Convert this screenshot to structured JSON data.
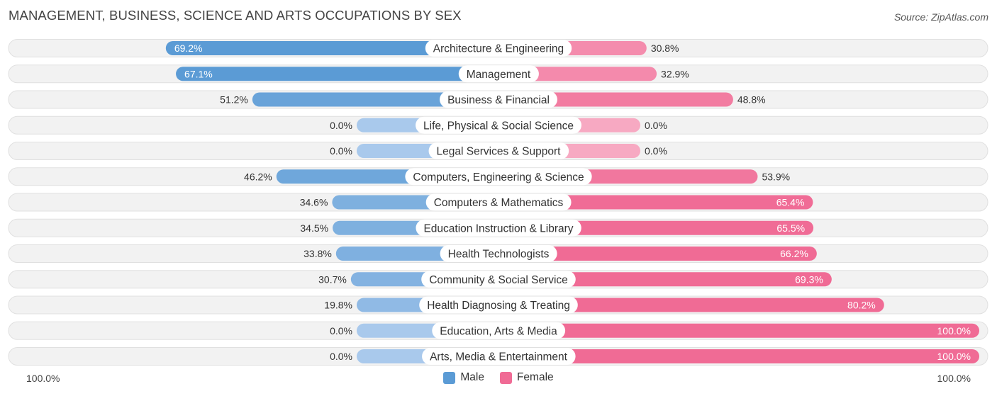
{
  "header": {
    "title": "MANAGEMENT, BUSINESS, SCIENCE AND ARTS OCCUPATIONS BY SEX",
    "source": "Source: ZipAtlas.com"
  },
  "axis": {
    "left_label": "100.0%",
    "right_label": "100.0%"
  },
  "legend": {
    "male_label": "Male",
    "female_label": "Female"
  },
  "colors": {
    "male_strong": "#5b9bd5",
    "male_light": "#a9c9ec",
    "female_strong": "#f06b95",
    "female_light": "#f7a9c2",
    "row_bg": "#f2f2f2",
    "row_border": "#e0e0e0"
  },
  "chart_data": {
    "type": "bar",
    "orientation": "horizontal-diverging",
    "title": "MANAGEMENT, BUSINESS, SCIENCE AND ARTS OCCUPATIONS BY SEX",
    "xlim": [
      0,
      100
    ],
    "categories": [
      "Architecture & Engineering",
      "Management",
      "Business & Financial",
      "Life, Physical & Social Science",
      "Legal Services & Support",
      "Computers, Engineering & Science",
      "Computers & Mathematics",
      "Education Instruction & Library",
      "Health Technologists",
      "Community & Social Service",
      "Health Diagnosing & Treating",
      "Education, Arts & Media",
      "Arts, Media & Entertainment"
    ],
    "series": [
      {
        "name": "Male",
        "values": [
          69.2,
          67.1,
          51.2,
          0.0,
          0.0,
          46.2,
          34.6,
          34.5,
          33.8,
          30.7,
          19.8,
          0.0,
          0.0
        ],
        "labels": [
          "69.2%",
          "67.1%",
          "51.2%",
          "0.0%",
          "0.0%",
          "46.2%",
          "34.6%",
          "34.5%",
          "33.8%",
          "30.7%",
          "19.8%",
          "0.0%",
          "0.0%"
        ]
      },
      {
        "name": "Female",
        "values": [
          30.8,
          32.9,
          48.8,
          0.0,
          0.0,
          53.9,
          65.4,
          65.5,
          66.2,
          69.3,
          80.2,
          100.0,
          100.0
        ],
        "labels": [
          "30.8%",
          "32.9%",
          "48.8%",
          "0.0%",
          "0.0%",
          "53.9%",
          "65.4%",
          "65.5%",
          "66.2%",
          "69.3%",
          "80.2%",
          "100.0%",
          "100.0%"
        ]
      }
    ]
  }
}
